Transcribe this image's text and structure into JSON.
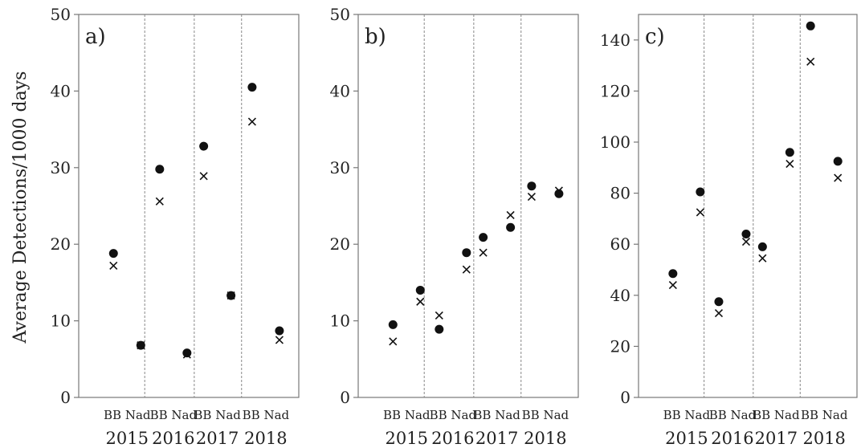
{
  "ylabel": "Average Detections/1000 days",
  "marker_legend": {
    "filled_circle": "dot",
    "cross": "x"
  },
  "chart_data": [
    {
      "type": "scatter",
      "panel": "a)",
      "ylim": [
        0,
        50
      ],
      "yticks": [
        0,
        10,
        20,
        30,
        40,
        50
      ],
      "years": [
        "2015",
        "2016",
        "2017",
        "2018"
      ],
      "group_label": "BB Nad",
      "categories": [
        "2015 BB",
        "2015 Nad",
        "2016 BB",
        "2016 Nad",
        "2017 BB",
        "2017 Nad",
        "2018 BB",
        "2018 Nad"
      ],
      "series": [
        {
          "marker": "dot",
          "values": [
            18.8,
            6.8,
            29.8,
            5.8,
            32.8,
            13.3,
            40.5,
            8.7
          ]
        },
        {
          "marker": "x",
          "values": [
            17.2,
            6.8,
            25.6,
            5.6,
            28.9,
            13.3,
            36.0,
            7.5
          ]
        }
      ]
    },
    {
      "type": "scatter",
      "panel": "b)",
      "ylim": [
        0,
        50
      ],
      "yticks": [
        0,
        10,
        20,
        30,
        40,
        50
      ],
      "years": [
        "2015",
        "2016",
        "2017",
        "2018"
      ],
      "group_label": "BB Nad",
      "categories": [
        "2015 BB",
        "2015 Nad",
        "2016 BB",
        "2016 Nad",
        "2017 BB",
        "2017 Nad",
        "2018 BB",
        "2018 Nad"
      ],
      "series": [
        {
          "marker": "dot",
          "values": [
            9.5,
            14.0,
            8.9,
            18.9,
            20.9,
            22.2,
            27.6,
            26.6
          ]
        },
        {
          "marker": "x",
          "values": [
            7.3,
            12.5,
            10.7,
            16.7,
            18.9,
            23.8,
            26.2,
            27.0
          ]
        }
      ]
    },
    {
      "type": "scatter",
      "panel": "c)",
      "ylim": [
        0,
        150
      ],
      "yticks": [
        0,
        20,
        40,
        60,
        80,
        100,
        120,
        140
      ],
      "years": [
        "2015",
        "2016",
        "2017",
        "2018"
      ],
      "group_label": "BB Nad",
      "categories": [
        "2015 BB",
        "2015 Nad",
        "2016 BB",
        "2016 Nad",
        "2017 BB",
        "2017 Nad",
        "2018 BB",
        "2018 Nad"
      ],
      "series": [
        {
          "marker": "dot",
          "values": [
            48.5,
            80.5,
            37.5,
            64.0,
            59.0,
            96.0,
            145.5,
            92.5
          ]
        },
        {
          "marker": "x",
          "values": [
            44.0,
            72.5,
            33.0,
            61.0,
            54.5,
            91.5,
            131.5,
            86.0
          ]
        }
      ]
    }
  ]
}
